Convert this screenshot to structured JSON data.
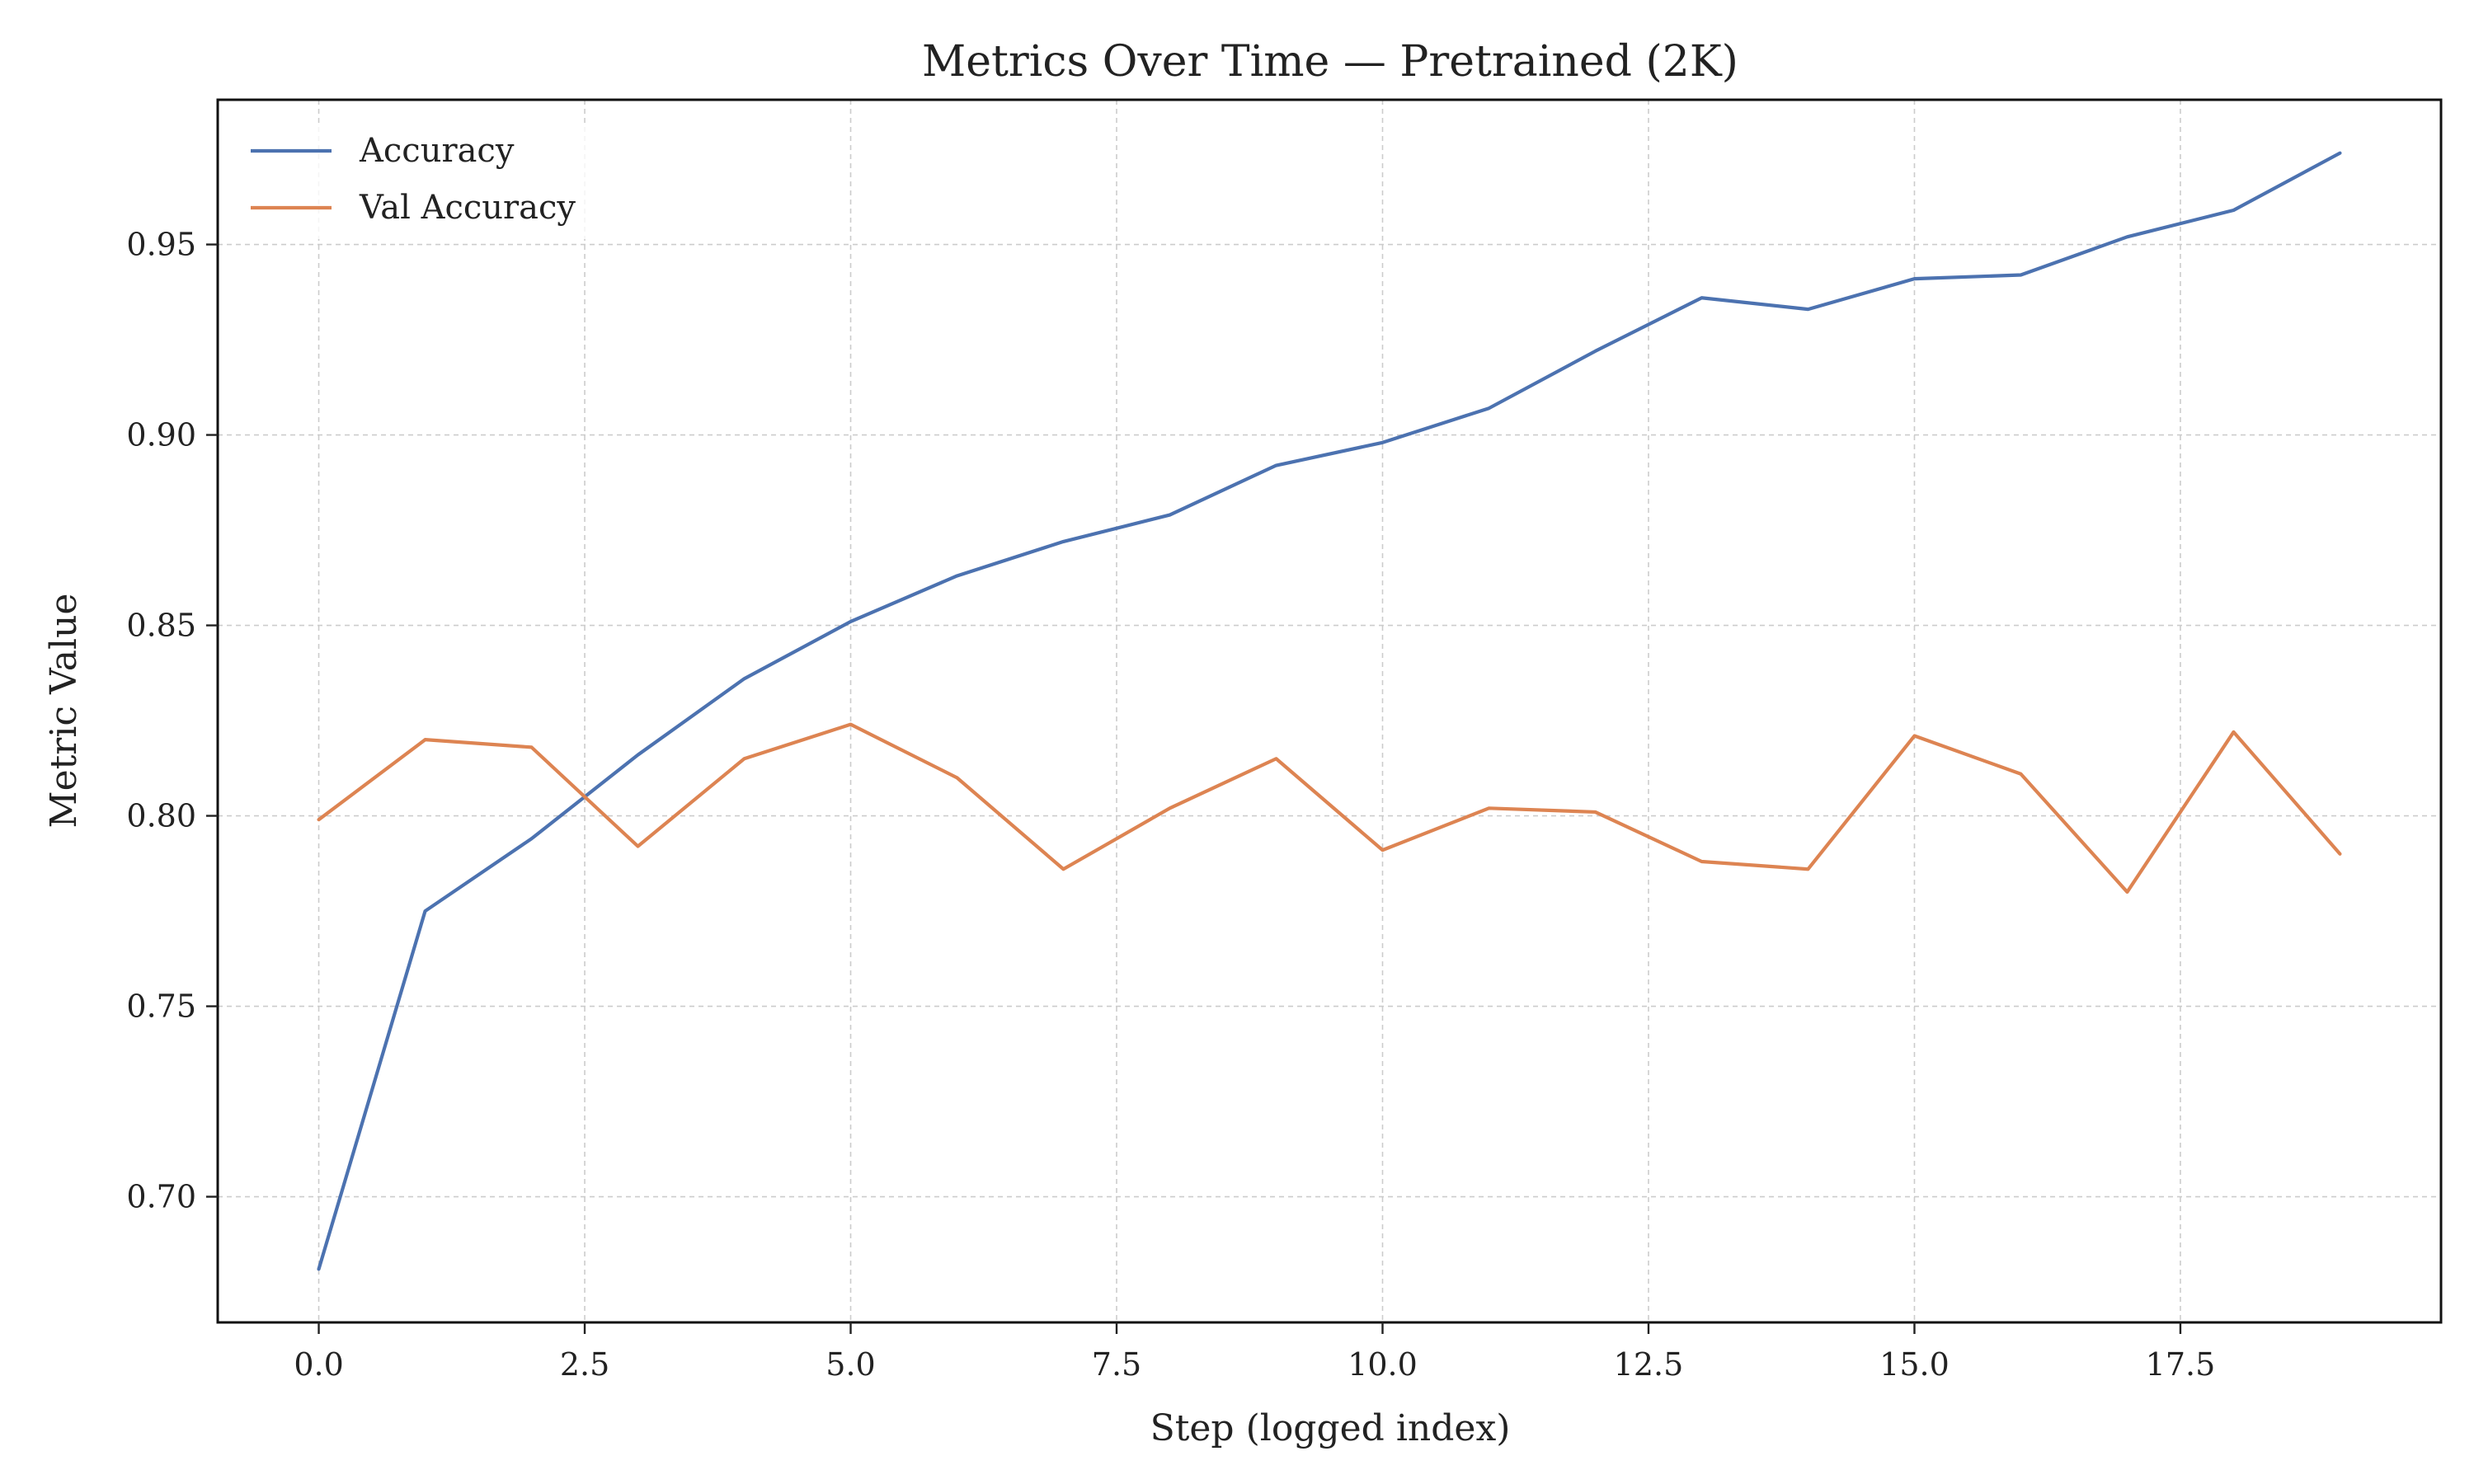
{
  "chart_data": {
    "type": "line",
    "title": "Metrics Over Time — Pretrained (2K)",
    "xlabel": "Step (logged index)",
    "ylabel": "Metric Value",
    "xlim": [
      -0.95,
      19.95
    ],
    "ylim": [
      0.667,
      0.988
    ],
    "x_ticks": [
      0.0,
      2.5,
      5.0,
      7.5,
      10.0,
      12.5,
      15.0,
      17.5
    ],
    "x_tick_labels": [
      "0.0",
      "2.5",
      "5.0",
      "7.5",
      "10.0",
      "12.5",
      "15.0",
      "17.5"
    ],
    "y_ticks": [
      0.7,
      0.75,
      0.8,
      0.85,
      0.9,
      0.95
    ],
    "y_tick_labels": [
      "0.70",
      "0.75",
      "0.80",
      "0.85",
      "0.90",
      "0.95"
    ],
    "grid": true,
    "legend_position": "top-left",
    "x": [
      0,
      1,
      2,
      3,
      4,
      5,
      6,
      7,
      8,
      9,
      10,
      11,
      12,
      13,
      14,
      15,
      16,
      17,
      18,
      19
    ],
    "series": [
      {
        "name": "Accuracy",
        "color": "#4c72b0",
        "values": [
          0.681,
          0.775,
          0.794,
          0.816,
          0.836,
          0.851,
          0.863,
          0.872,
          0.879,
          0.892,
          0.898,
          0.907,
          0.922,
          0.936,
          0.933,
          0.941,
          0.942,
          0.952,
          0.959,
          0.974
        ]
      },
      {
        "name": "Val Accuracy",
        "color": "#dd8452",
        "values": [
          0.799,
          0.82,
          0.818,
          0.792,
          0.815,
          0.824,
          0.81,
          0.786,
          0.802,
          0.815,
          0.791,
          0.802,
          0.801,
          0.788,
          0.786,
          0.821,
          0.811,
          0.78,
          0.822,
          0.79
        ]
      }
    ]
  }
}
